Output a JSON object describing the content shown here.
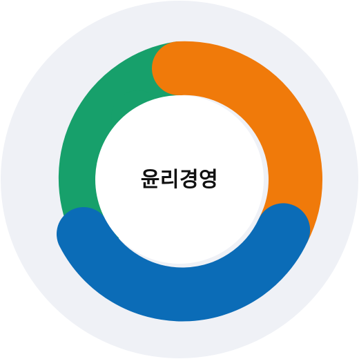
{
  "center_label": "윤리경영",
  "colors": {
    "outer_bg": "#eff1f6",
    "inner_bg": "#ffffff",
    "segment_green": "#17a06b",
    "segment_orange": "#f07a0a",
    "segment_blue": "#0b6cb7"
  }
}
